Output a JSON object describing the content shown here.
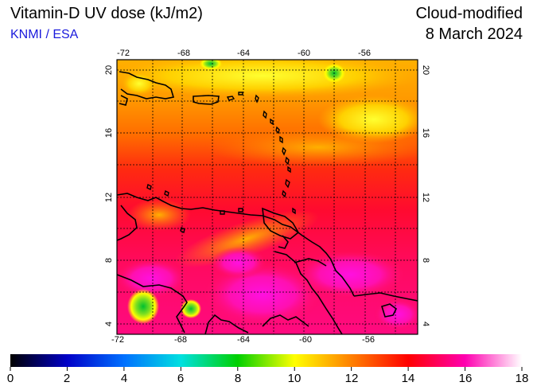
{
  "header": {
    "title": "Vitamin-D UV dose (kJ/m2)",
    "organization": "KNMI / ESA",
    "product": "Cloud-modified",
    "date": "8 March 2024"
  },
  "map": {
    "lon_ticks": [
      "-72",
      "-68",
      "-64",
      "-60",
      "-56"
    ],
    "lat_ticks": [
      "20",
      "16",
      "12",
      "8",
      "4"
    ]
  },
  "colorbar": {
    "labels": [
      "0",
      "2",
      "4",
      "6",
      "8",
      "10",
      "12",
      "14",
      "16",
      "18"
    ],
    "colors": [
      "#000000",
      "#0000c8",
      "#0070ff",
      "#00e0e0",
      "#00d000",
      "#ffff00",
      "#ff8000",
      "#ff0000",
      "#ff00b0",
      "#ffffff"
    ]
  }
}
